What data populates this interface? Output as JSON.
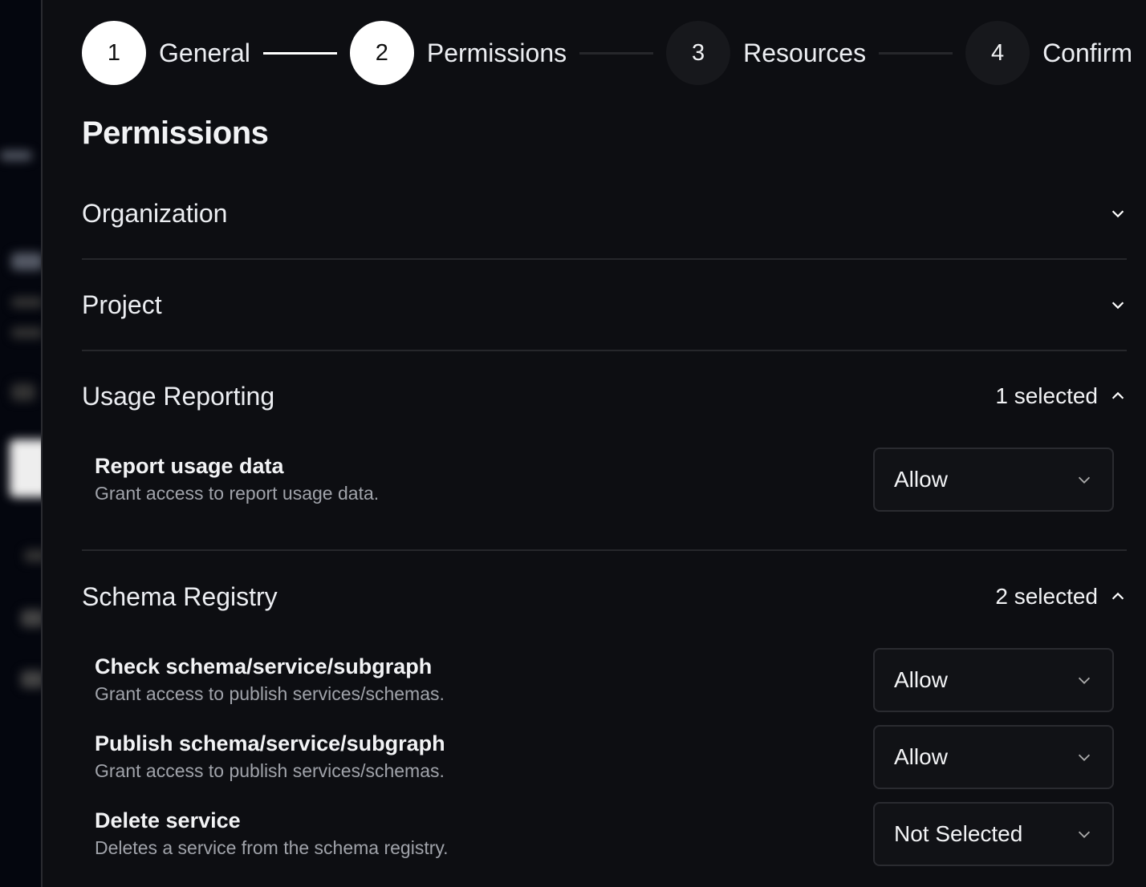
{
  "stepper": [
    {
      "number": "1",
      "label": "General",
      "state": "done"
    },
    {
      "number": "2",
      "label": "Permissions",
      "state": "current"
    },
    {
      "number": "3",
      "label": "Resources",
      "state": "upcoming"
    },
    {
      "number": "4",
      "label": "Confirm",
      "state": "upcoming"
    }
  ],
  "title": "Permissions",
  "sections": {
    "organization": {
      "title": "Organization",
      "icon": "chevron-down-icon"
    },
    "project": {
      "title": "Project",
      "icon": "chevron-down-icon"
    },
    "usage": {
      "title": "Usage Reporting",
      "count": "1 selected",
      "icon": "chevron-up-icon",
      "items": [
        {
          "title": "Report usage data",
          "desc": "Grant access to report usage data.",
          "value": "Allow"
        }
      ]
    },
    "schema": {
      "title": "Schema Registry",
      "count": "2 selected",
      "icon": "chevron-up-icon",
      "items": [
        {
          "title": "Check schema/service/subgraph",
          "desc": "Grant access to publish services/schemas.",
          "value": "Allow"
        },
        {
          "title": "Publish schema/service/subgraph",
          "desc": "Grant access to publish services/schemas.",
          "value": "Allow"
        },
        {
          "title": "Delete service",
          "desc": "Deletes a service from the schema registry.",
          "value": "Not Selected"
        }
      ]
    }
  }
}
